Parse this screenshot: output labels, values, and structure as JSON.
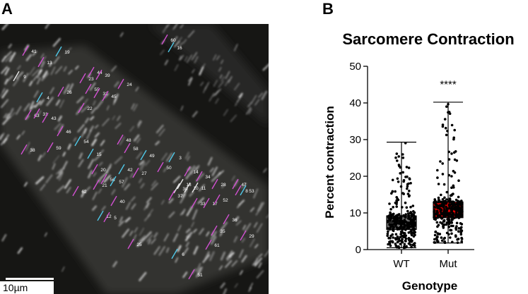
{
  "panels": {
    "a_label": "A",
    "b_label": "B"
  },
  "micrograph": {
    "scale_bar_label": "10µm",
    "markers": [
      {
        "id": "41",
        "color": "magenta"
      },
      {
        "id": "19",
        "color": "cyan"
      },
      {
        "id": "13",
        "color": "magenta"
      },
      {
        "id": "9",
        "color": "white"
      },
      {
        "id": "44",
        "color": "magenta"
      },
      {
        "id": "23",
        "color": "magenta"
      },
      {
        "id": "39",
        "color": "magenta"
      },
      {
        "id": "24",
        "color": "magenta"
      },
      {
        "id": "55",
        "color": "magenta"
      },
      {
        "id": "32",
        "color": "magenta"
      },
      {
        "id": "45",
        "color": "magenta"
      },
      {
        "id": "26",
        "color": "magenta"
      },
      {
        "id": "4",
        "color": "cyan"
      },
      {
        "id": "22",
        "color": "magenta"
      },
      {
        "id": "63",
        "color": "magenta"
      },
      {
        "id": "31",
        "color": "magenta"
      },
      {
        "id": "43",
        "color": "magenta"
      },
      {
        "id": "46",
        "color": "magenta"
      },
      {
        "id": "54",
        "color": "cyan"
      },
      {
        "id": "48",
        "color": "magenta"
      },
      {
        "id": "58",
        "color": "magenta"
      },
      {
        "id": "38",
        "color": "magenta"
      },
      {
        "id": "59",
        "color": "magenta"
      },
      {
        "id": "15",
        "color": "cyan"
      },
      {
        "id": "49",
        "color": "cyan"
      },
      {
        "id": "20",
        "color": "magenta"
      },
      {
        "id": "42",
        "color": "cyan"
      },
      {
        "id": "50",
        "color": "magenta"
      },
      {
        "id": "3",
        "color": "cyan"
      },
      {
        "id": "14",
        "color": "magenta"
      },
      {
        "id": "56",
        "color": "magenta"
      },
      {
        "id": "57",
        "color": "cyan"
      },
      {
        "id": "27",
        "color": "magenta"
      },
      {
        "id": "21",
        "color": "magenta"
      },
      {
        "id": "62",
        "color": "magenta"
      },
      {
        "id": "18",
        "color": "white"
      },
      {
        "id": "30",
        "color": "white"
      },
      {
        "id": "10",
        "color": "white"
      },
      {
        "id": "11",
        "color": "white"
      },
      {
        "id": "34",
        "color": "magenta"
      },
      {
        "id": "28",
        "color": "magenta"
      },
      {
        "id": "47",
        "color": "magenta"
      },
      {
        "id": "8",
        "color": "magenta"
      },
      {
        "id": "53",
        "color": "cyan"
      },
      {
        "id": "37",
        "color": "magenta"
      },
      {
        "id": "33",
        "color": "magenta"
      },
      {
        "id": "17",
        "color": "magenta"
      },
      {
        "id": "52",
        "color": "magenta"
      },
      {
        "id": "40",
        "color": "magenta"
      },
      {
        "id": "12",
        "color": "cyan"
      },
      {
        "id": "5",
        "color": "magenta"
      },
      {
        "id": "36",
        "color": "magenta"
      },
      {
        "id": "35",
        "color": "magenta"
      },
      {
        "id": "29",
        "color": "magenta"
      },
      {
        "id": "61",
        "color": "magenta"
      },
      {
        "id": "25",
        "color": "magenta"
      },
      {
        "id": "6",
        "color": "cyan"
      },
      {
        "id": "51",
        "color": "magenta"
      },
      {
        "id": "60",
        "color": "magenta"
      },
      {
        "id": "16",
        "color": "cyan"
      }
    ]
  },
  "chart_data": {
    "type": "box",
    "title": "Sarcomere Contraction",
    "xlabel": "Genotype",
    "ylabel": "Percent contraction",
    "ylim": [
      0,
      50
    ],
    "yticks": [
      0,
      10,
      20,
      30,
      40,
      50
    ],
    "categories": [
      "WT",
      "Mut"
    ],
    "series": [
      {
        "category": "WT",
        "min": 0.5,
        "q1": 5.5,
        "median": 7.5,
        "q3": 9.2,
        "max": 29.3,
        "fill": "#707070"
      },
      {
        "category": "Mut",
        "min": 1.8,
        "q1": 8.7,
        "median": 9.5,
        "q3": 13.0,
        "max": 40.2,
        "fill": "#e00000"
      }
    ],
    "annotation": "****",
    "points_overlaid": true
  }
}
